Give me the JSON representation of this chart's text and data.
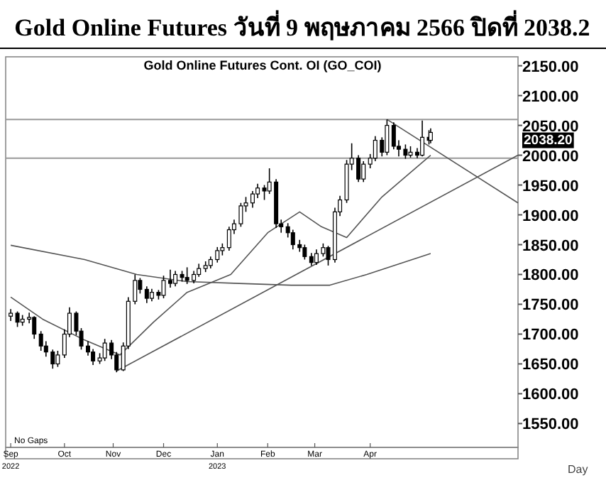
{
  "chart_data": {
    "type": "candlestick",
    "title": "Gold Online Futures วันที่ 9 พฤษภาคม 2566 ปิดที่ 2038.2",
    "subtitle": "Gold Online Futures Cont. OI (GO_COI)",
    "x": [
      "2022-09-01",
      "2022-09-05",
      "2022-09-08",
      "2022-09-12",
      "2022-09-15",
      "2022-09-19",
      "2022-09-22",
      "2022-09-26",
      "2022-09-29",
      "2022-10-03",
      "2022-10-06",
      "2022-10-10",
      "2022-10-13",
      "2022-10-17",
      "2022-10-20",
      "2022-10-24",
      "2022-10-27",
      "2022-10-31",
      "2022-11-03",
      "2022-11-07",
      "2022-11-10",
      "2022-11-14",
      "2022-11-17",
      "2022-11-21",
      "2022-11-24",
      "2022-11-28",
      "2022-12-01",
      "2022-12-05",
      "2022-12-08",
      "2022-12-12",
      "2022-12-15",
      "2022-12-19",
      "2022-12-22",
      "2022-12-26",
      "2022-12-29",
      "2023-01-02",
      "2023-01-05",
      "2023-01-09",
      "2023-01-12",
      "2023-01-16",
      "2023-01-19",
      "2023-01-23",
      "2023-01-26",
      "2023-01-30",
      "2023-02-02",
      "2023-02-06",
      "2023-02-09",
      "2023-02-13",
      "2023-02-16",
      "2023-02-20",
      "2023-02-23",
      "2023-02-27",
      "2023-03-02",
      "2023-03-06",
      "2023-03-09",
      "2023-03-13",
      "2023-03-16",
      "2023-03-20",
      "2023-03-23",
      "2023-03-27",
      "2023-03-30",
      "2023-04-03",
      "2023-04-06",
      "2023-04-10",
      "2023-04-13",
      "2023-04-17",
      "2023-04-20",
      "2023-04-24",
      "2023-04-27",
      "2023-05-01",
      "2023-05-04",
      "2023-05-08",
      "2023-05-09"
    ],
    "ohlc": [
      [
        1730,
        1742,
        1722,
        1735
      ],
      [
        1735,
        1738,
        1712,
        1720
      ],
      [
        1720,
        1732,
        1714,
        1725
      ],
      [
        1725,
        1736,
        1718,
        1728
      ],
      [
        1728,
        1730,
        1692,
        1700
      ],
      [
        1700,
        1705,
        1672,
        1680
      ],
      [
        1680,
        1688,
        1662,
        1670
      ],
      [
        1670,
        1674,
        1642,
        1650
      ],
      [
        1650,
        1672,
        1645,
        1665
      ],
      [
        1665,
        1708,
        1660,
        1700
      ],
      [
        1700,
        1745,
        1695,
        1735
      ],
      [
        1735,
        1738,
        1698,
        1705
      ],
      [
        1705,
        1710,
        1674,
        1680
      ],
      [
        1680,
        1688,
        1664,
        1670
      ],
      [
        1670,
        1675,
        1648,
        1655
      ],
      [
        1655,
        1668,
        1650,
        1660
      ],
      [
        1660,
        1692,
        1655,
        1685
      ],
      [
        1685,
        1690,
        1658,
        1665
      ],
      [
        1665,
        1670,
        1636,
        1640
      ],
      [
        1640,
        1686,
        1638,
        1680
      ],
      [
        1680,
        1762,
        1675,
        1755
      ],
      [
        1755,
        1800,
        1750,
        1790
      ],
      [
        1790,
        1794,
        1768,
        1775
      ],
      [
        1775,
        1780,
        1752,
        1760
      ],
      [
        1760,
        1776,
        1755,
        1770
      ],
      [
        1770,
        1774,
        1758,
        1765
      ],
      [
        1765,
        1798,
        1760,
        1790
      ],
      [
        1790,
        1808,
        1778,
        1785
      ],
      [
        1785,
        1806,
        1780,
        1800
      ],
      [
        1800,
        1806,
        1788,
        1795
      ],
      [
        1795,
        1812,
        1784,
        1790
      ],
      [
        1790,
        1806,
        1785,
        1800
      ],
      [
        1800,
        1818,
        1796,
        1810
      ],
      [
        1810,
        1822,
        1804,
        1815
      ],
      [
        1815,
        1830,
        1810,
        1825
      ],
      [
        1825,
        1846,
        1820,
        1840
      ],
      [
        1840,
        1852,
        1832,
        1845
      ],
      [
        1845,
        1880,
        1840,
        1875
      ],
      [
        1875,
        1892,
        1868,
        1885
      ],
      [
        1885,
        1920,
        1880,
        1915
      ],
      [
        1915,
        1930,
        1905,
        1920
      ],
      [
        1920,
        1940,
        1912,
        1935
      ],
      [
        1935,
        1952,
        1928,
        1945
      ],
      [
        1945,
        1950,
        1925,
        1940
      ],
      [
        1940,
        1978,
        1935,
        1955
      ],
      [
        1955,
        1960,
        1878,
        1885
      ],
      [
        1885,
        1892,
        1870,
        1880
      ],
      [
        1880,
        1886,
        1862,
        1870
      ],
      [
        1870,
        1875,
        1842,
        1850
      ],
      [
        1850,
        1858,
        1838,
        1845
      ],
      [
        1845,
        1850,
        1825,
        1830
      ],
      [
        1830,
        1836,
        1815,
        1820
      ],
      [
        1820,
        1842,
        1816,
        1835
      ],
      [
        1835,
        1852,
        1830,
        1845
      ],
      [
        1845,
        1848,
        1815,
        1825
      ],
      [
        1825,
        1912,
        1820,
        1905
      ],
      [
        1905,
        1932,
        1898,
        1925
      ],
      [
        1925,
        1992,
        1920,
        1985
      ],
      [
        1985,
        2020,
        1975,
        1995
      ],
      [
        1995,
        2000,
        1955,
        1960
      ],
      [
        1960,
        1990,
        1955,
        1985
      ],
      [
        1985,
        2002,
        1978,
        1995
      ],
      [
        1995,
        2032,
        1990,
        2025
      ],
      [
        2025,
        2030,
        1998,
        2005
      ],
      [
        2005,
        2060,
        2000,
        2050
      ],
      [
        2050,
        2055,
        2010,
        2015
      ],
      [
        2015,
        2025,
        1998,
        2010
      ],
      [
        2010,
        2018,
        1994,
        2000
      ],
      [
        2000,
        2015,
        1996,
        2005
      ],
      [
        2005,
        2012,
        1995,
        2000
      ],
      [
        2000,
        2058,
        1998,
        2030
      ],
      [
        2030,
        2042,
        2018,
        2025
      ],
      [
        2025,
        2045,
        2020,
        2038.2
      ]
    ],
    "series": [
      {
        "type": "line",
        "color": "#555555",
        "x": [
          "2022-09-01",
          "2022-10-15",
          "2022-11-15",
          "2022-12-15",
          "2023-01-15",
          "2023-02-15",
          "2023-03-10",
          "2023-04-01",
          "2023-05-09"
        ],
        "values": [
          1849,
          1825,
          1800,
          1788,
          1785,
          1782,
          1782,
          1800,
          1835
        ]
      },
      {
        "type": "line",
        "color": "#555555",
        "x": [
          "2022-09-01",
          "2022-09-20",
          "2022-10-15",
          "2022-11-05",
          "2022-11-25",
          "2022-12-15",
          "2023-01-10",
          "2023-02-01",
          "2023-02-20",
          "2023-03-05",
          "2023-03-20",
          "2023-04-10",
          "2023-05-09"
        ],
        "values": [
          1762,
          1725,
          1690,
          1665,
          1720,
          1770,
          1800,
          1870,
          1905,
          1880,
          1862,
          1930,
          2000
        ]
      },
      {
        "type": "line",
        "color": "#555555",
        "x": [
          "2022-11-03",
          "2023-06-30"
        ],
        "values": [
          1638,
          2000
        ]
      },
      {
        "type": "line",
        "color": "#555555",
        "x": [
          "2023-04-13",
          "2023-06-30"
        ],
        "values": [
          2060,
          1920
        ]
      }
    ],
    "ref_lines": [
      {
        "axis": "y",
        "value": 2060,
        "color": "#999999"
      },
      {
        "axis": "y",
        "value": 1995,
        "color": "#999999"
      }
    ],
    "xlim": [
      "2022-08-29",
      "2023-06-30"
    ],
    "xticks": [
      {
        "value": "2022-09-01",
        "label": "Sep"
      },
      {
        "value": "2022-10-03",
        "label": "Oct"
      },
      {
        "value": "2022-11-01",
        "label": "Nov"
      },
      {
        "value": "2022-12-01",
        "label": "Dec"
      },
      {
        "value": "2023-01-02",
        "label": "Jan"
      },
      {
        "value": "2023-02-01",
        "label": "Feb"
      },
      {
        "value": "2023-03-01",
        "label": "Mar"
      },
      {
        "value": "2023-04-03",
        "label": "Apr"
      }
    ],
    "ylim": [
      1510,
      2165
    ],
    "yticks": [
      {
        "value": 1550,
        "label": "1550.00"
      },
      {
        "value": 1600,
        "label": "1600.00"
      },
      {
        "value": 1650,
        "label": "1650.00"
      },
      {
        "value": 1700,
        "label": "1700.00"
      },
      {
        "value": 1750,
        "label": "1750.00"
      },
      {
        "value": 1800,
        "label": "1800.00"
      },
      {
        "value": 1850,
        "label": "1850.00"
      },
      {
        "value": 1900,
        "label": "1900.00"
      },
      {
        "value": 1950,
        "label": "1950.00"
      },
      {
        "value": 2000,
        "label": "2000.00"
      },
      {
        "value": 2050,
        "label": "2050.00"
      },
      {
        "value": 2100,
        "label": "2100.00"
      },
      {
        "value": 2150,
        "label": "2150.00"
      }
    ],
    "annotations": [
      "2038.20",
      "No Gaps",
      "2022",
      "2023",
      "Day"
    ]
  }
}
